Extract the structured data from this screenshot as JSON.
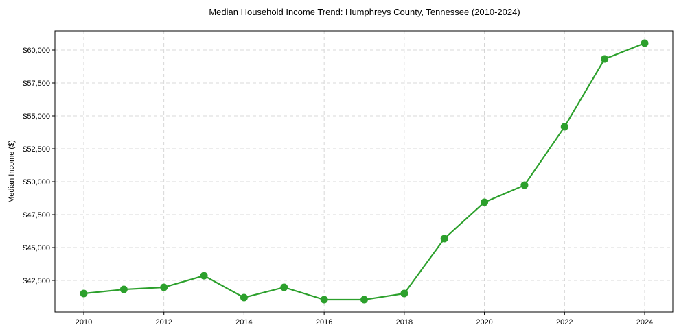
{
  "chart_data": {
    "type": "line",
    "title": "Median Household Income Trend: Humphreys County, Tennessee (2010-2024)",
    "xlabel": "",
    "ylabel": "Median Income ($)",
    "x": [
      2010,
      2011,
      2012,
      2013,
      2014,
      2015,
      2016,
      2017,
      2018,
      2019,
      2020,
      2021,
      2022,
      2023,
      2024
    ],
    "series": [
      {
        "name": "Median Household Income",
        "color": "#2ca02c",
        "values": [
          41510,
          41820,
          41980,
          42860,
          41200,
          41980,
          41040,
          41040,
          41510,
          45680,
          48440,
          49740,
          54170,
          59320,
          60520
        ]
      }
    ],
    "x_ticks": [
      2010,
      2012,
      2014,
      2016,
      2018,
      2020,
      2022,
      2024
    ],
    "y_ticks": [
      42500,
      45000,
      47500,
      50000,
      52500,
      55000,
      57500,
      60000
    ],
    "y_tick_labels": [
      "$42,500",
      "$45,000",
      "$47,500",
      "$50,000",
      "$52,500",
      "$55,000",
      "$57,500",
      "$60,000"
    ],
    "xlim": [
      2009.35,
      2024.65
    ],
    "ylim": [
      40060,
      61500
    ],
    "grid": true,
    "legend": null
  }
}
